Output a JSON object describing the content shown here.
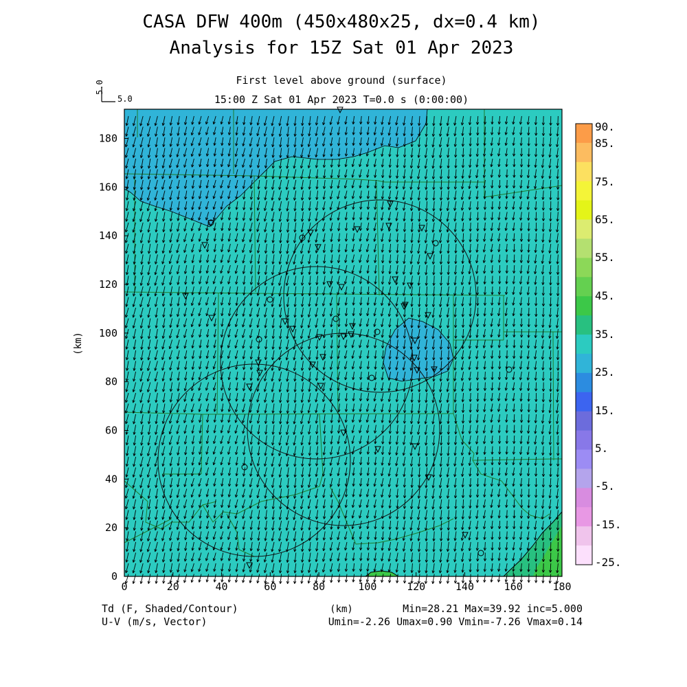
{
  "title_line1": "CASA DFW 400m (450x480x25, dx=0.4 km)",
  "title_line2": "Analysis for 15Z Sat 01 Apr 2023",
  "subtitle_level": "First level above ground (surface)",
  "subtitle_time": "15:00 Z Sat 01 Apr 2023    T=0.0 s (0:00:00)",
  "ref_vector": {
    "label_vertical": "5.0",
    "label_horizontal": "5.0"
  },
  "x_axis": {
    "label": "(km)",
    "ticks": [
      "0",
      "20",
      "40",
      "60",
      "80",
      "100",
      "120",
      "140",
      "160",
      "180"
    ],
    "range": [
      0,
      180
    ]
  },
  "y_axis": {
    "label": "(km)",
    "ticks": [
      "0",
      "20",
      "40",
      "60",
      "80",
      "100",
      "120",
      "140",
      "160",
      "180"
    ],
    "range": [
      0,
      192
    ]
  },
  "colorbar": {
    "labels": [
      "90.",
      "85.",
      "75.",
      "65.",
      "55.",
      "45.",
      "35.",
      "25.",
      "15.",
      "5.",
      "-5.",
      "-15.",
      "-25."
    ],
    "colors": [
      "#fc9c48",
      "#fcbc60",
      "#fce060",
      "#f4f438",
      "#e4f418",
      "#dcec70",
      "#b4e070",
      "#8cd858",
      "#64d050",
      "#3cc848",
      "#28c080",
      "#2ccbc0",
      "#30b4d8",
      "#2c8ce0",
      "#3c64f0",
      "#6c6cdc",
      "#8878e8",
      "#9c8cf4",
      "#b4a4ec",
      "#d88ce0",
      "#e898e4",
      "#f0c4ec",
      "#fce0fc"
    ]
  },
  "field": {
    "base_color": "#2ccbc0",
    "low_color": "#30b4d8",
    "high_color": "#3cc848",
    "high2_color": "#28c080"
  },
  "footer": {
    "left_line1": "Td (F, Shaded/Contour)",
    "left_line2": "U-V (m/s, Vector)",
    "center": "(km)",
    "right_line1": "Min=28.21 Max=39.92 inc=5.000",
    "right_line2": "Umin=-2.26 Umax=0.90 Vmin=-7.26 Vmax=0.14"
  }
}
